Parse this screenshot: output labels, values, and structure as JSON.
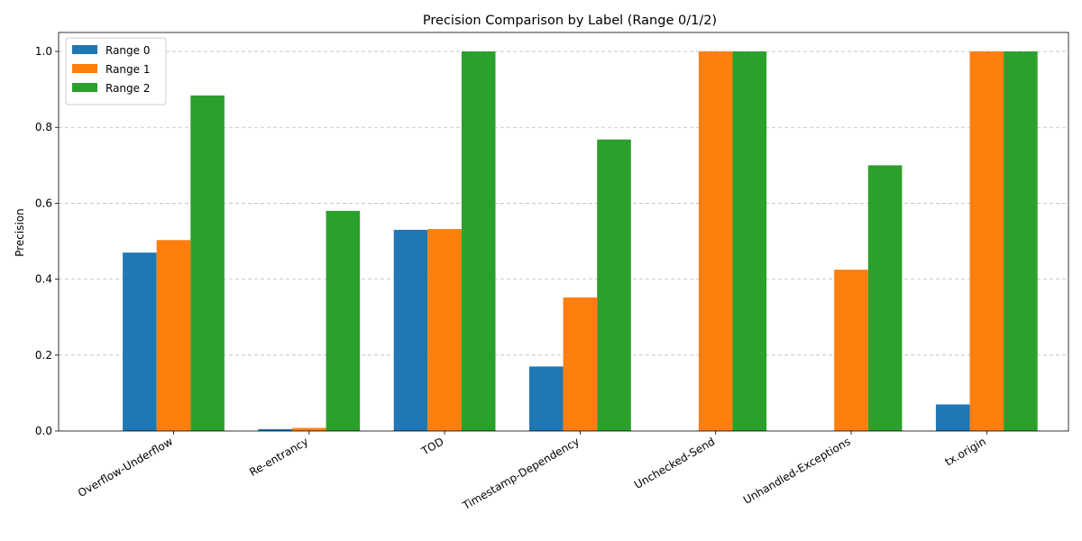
{
  "chart_data": {
    "type": "bar",
    "title": "Precision Comparison by Label (Range 0/1/2)",
    "xlabel": "",
    "ylabel": "Precision",
    "ylim": [
      0,
      1.05
    ],
    "yticks": [
      "0.0",
      "0.2",
      "0.4",
      "0.6",
      "0.8",
      "1.0"
    ],
    "grid": "y",
    "legend_position": "top-left",
    "categories": [
      "Overflow-Underflow",
      "Re-entrancy",
      "TOD",
      "Timestamp-Dependency",
      "Unchecked-Send",
      "Unhandled-Exceptions",
      "tx.origin"
    ],
    "series": [
      {
        "name": "Range 0",
        "color": "#1f77b4",
        "values": [
          0.47,
          0.005,
          0.53,
          0.17,
          0.0,
          0.0,
          0.07
        ]
      },
      {
        "name": "Range 1",
        "color": "#ff7f0e",
        "values": [
          0.503,
          0.008,
          0.532,
          0.352,
          1.0,
          0.425,
          1.0
        ]
      },
      {
        "name": "Range 2",
        "color": "#2ca02c",
        "values": [
          0.884,
          0.58,
          1.0,
          0.768,
          1.0,
          0.7,
          1.0
        ]
      }
    ]
  }
}
